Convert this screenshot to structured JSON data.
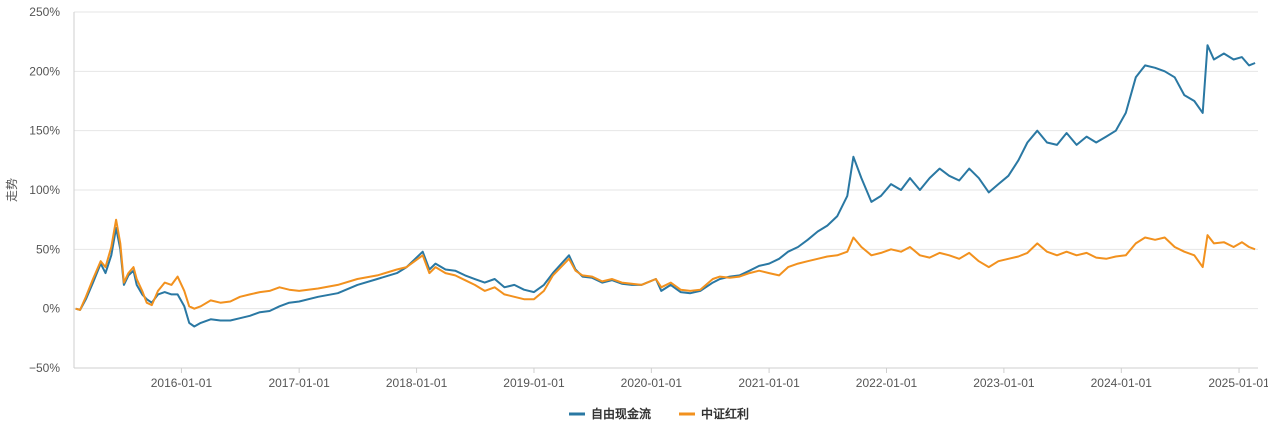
{
  "chart_data": {
    "type": "line",
    "ylabel": "走势",
    "xlabel": "",
    "ylim": [
      -50,
      250
    ],
    "y_ticks": [
      -50,
      0,
      50,
      100,
      150,
      200,
      250
    ],
    "y_tick_labels": [
      "−50%",
      "0%",
      "50%",
      "100%",
      "150%",
      "200%",
      "250%"
    ],
    "x_range": [
      "2015-02-01",
      "2025-03-01"
    ],
    "x_ticks": [
      "2016-01-01",
      "2017-01-01",
      "2018-01-01",
      "2019-01-01",
      "2020-01-01",
      "2021-01-01",
      "2022-01-01",
      "2023-01-01",
      "2024-01-01",
      "2025-01-01"
    ],
    "grid": "horizontal",
    "legend_position": "bottom-center",
    "series": [
      {
        "name": "自由现金流",
        "color": "#2a78a3",
        "points": [
          [
            "2015-02-06",
            0
          ],
          [
            "2015-02-20",
            -1
          ],
          [
            "2015-03-10",
            8
          ],
          [
            "2015-04-01",
            22
          ],
          [
            "2015-04-25",
            38
          ],
          [
            "2015-05-10",
            30
          ],
          [
            "2015-05-28",
            45
          ],
          [
            "2015-06-12",
            68
          ],
          [
            "2015-06-25",
            50
          ],
          [
            "2015-07-06",
            20
          ],
          [
            "2015-07-20",
            28
          ],
          [
            "2015-08-05",
            32
          ],
          [
            "2015-08-15",
            20
          ],
          [
            "2015-09-01",
            12
          ],
          [
            "2015-09-15",
            8
          ],
          [
            "2015-10-01",
            5
          ],
          [
            "2015-10-20",
            12
          ],
          [
            "2015-11-10",
            14
          ],
          [
            "2015-12-01",
            12
          ],
          [
            "2015-12-20",
            12
          ],
          [
            "2016-01-10",
            2
          ],
          [
            "2016-01-25",
            -12
          ],
          [
            "2016-02-10",
            -15
          ],
          [
            "2016-03-01",
            -12
          ],
          [
            "2016-04-01",
            -9
          ],
          [
            "2016-05-01",
            -10
          ],
          [
            "2016-06-01",
            -10
          ],
          [
            "2016-07-01",
            -8
          ],
          [
            "2016-08-01",
            -6
          ],
          [
            "2016-09-01",
            -3
          ],
          [
            "2016-10-01",
            -2
          ],
          [
            "2016-11-01",
            2
          ],
          [
            "2016-12-01",
            5
          ],
          [
            "2017-01-01",
            6
          ],
          [
            "2017-03-01",
            10
          ],
          [
            "2017-05-01",
            13
          ],
          [
            "2017-07-01",
            20
          ],
          [
            "2017-09-01",
            25
          ],
          [
            "2017-11-01",
            30
          ],
          [
            "2017-12-01",
            35
          ],
          [
            "2018-01-20",
            48
          ],
          [
            "2018-02-10",
            33
          ],
          [
            "2018-03-01",
            38
          ],
          [
            "2018-04-01",
            33
          ],
          [
            "2018-05-01",
            32
          ],
          [
            "2018-06-01",
            28
          ],
          [
            "2018-07-01",
            25
          ],
          [
            "2018-08-01",
            22
          ],
          [
            "2018-09-01",
            25
          ],
          [
            "2018-10-01",
            18
          ],
          [
            "2018-11-01",
            20
          ],
          [
            "2018-12-01",
            16
          ],
          [
            "2019-01-01",
            14
          ],
          [
            "2019-02-01",
            20
          ],
          [
            "2019-03-01",
            30
          ],
          [
            "2019-04-20",
            45
          ],
          [
            "2019-05-10",
            33
          ],
          [
            "2019-06-01",
            27
          ],
          [
            "2019-07-01",
            26
          ],
          [
            "2019-08-01",
            22
          ],
          [
            "2019-09-01",
            24
          ],
          [
            "2019-10-01",
            21
          ],
          [
            "2019-11-01",
            20
          ],
          [
            "2019-12-01",
            20
          ],
          [
            "2020-01-15",
            25
          ],
          [
            "2020-02-01",
            15
          ],
          [
            "2020-03-01",
            20
          ],
          [
            "2020-04-01",
            14
          ],
          [
            "2020-05-01",
            13
          ],
          [
            "2020-06-01",
            15
          ],
          [
            "2020-07-10",
            22
          ],
          [
            "2020-08-01",
            25
          ],
          [
            "2020-09-01",
            27
          ],
          [
            "2020-10-01",
            28
          ],
          [
            "2020-11-01",
            32
          ],
          [
            "2020-12-01",
            36
          ],
          [
            "2021-01-01",
            38
          ],
          [
            "2021-02-01",
            42
          ],
          [
            "2021-03-01",
            48
          ],
          [
            "2021-04-01",
            52
          ],
          [
            "2021-05-01",
            58
          ],
          [
            "2021-06-01",
            65
          ],
          [
            "2021-07-01",
            70
          ],
          [
            "2021-08-01",
            78
          ],
          [
            "2021-09-01",
            95
          ],
          [
            "2021-09-20",
            128
          ],
          [
            "2021-10-15",
            110
          ],
          [
            "2021-11-15",
            90
          ],
          [
            "2021-12-15",
            95
          ],
          [
            "2022-01-15",
            105
          ],
          [
            "2022-02-15",
            100
          ],
          [
            "2022-03-15",
            110
          ],
          [
            "2022-04-15",
            100
          ],
          [
            "2022-05-15",
            110
          ],
          [
            "2022-06-15",
            118
          ],
          [
            "2022-07-15",
            112
          ],
          [
            "2022-08-15",
            108
          ],
          [
            "2022-09-15",
            118
          ],
          [
            "2022-10-15",
            110
          ],
          [
            "2022-11-15",
            98
          ],
          [
            "2022-12-15",
            105
          ],
          [
            "2023-01-15",
            112
          ],
          [
            "2023-02-15",
            125
          ],
          [
            "2023-03-15",
            140
          ],
          [
            "2023-04-15",
            150
          ],
          [
            "2023-05-15",
            140
          ],
          [
            "2023-06-15",
            138
          ],
          [
            "2023-07-15",
            148
          ],
          [
            "2023-08-15",
            138
          ],
          [
            "2023-09-15",
            145
          ],
          [
            "2023-10-15",
            140
          ],
          [
            "2023-11-15",
            145
          ],
          [
            "2023-12-15",
            150
          ],
          [
            "2024-01-15",
            165
          ],
          [
            "2024-02-15",
            195
          ],
          [
            "2024-03-15",
            205
          ],
          [
            "2024-04-15",
            203
          ],
          [
            "2024-05-15",
            200
          ],
          [
            "2024-06-15",
            195
          ],
          [
            "2024-07-15",
            180
          ],
          [
            "2024-08-15",
            175
          ],
          [
            "2024-09-10",
            165
          ],
          [
            "2024-09-25",
            222
          ],
          [
            "2024-10-15",
            210
          ],
          [
            "2024-11-15",
            215
          ],
          [
            "2024-12-15",
            210
          ],
          [
            "2025-01-10",
            212
          ],
          [
            "2025-02-01",
            205
          ],
          [
            "2025-02-20",
            207
          ]
        ]
      },
      {
        "name": "中证红利",
        "color": "#f2911e",
        "points": [
          [
            "2015-02-06",
            0
          ],
          [
            "2015-02-20",
            -1
          ],
          [
            "2015-03-10",
            10
          ],
          [
            "2015-04-01",
            25
          ],
          [
            "2015-04-25",
            40
          ],
          [
            "2015-05-10",
            35
          ],
          [
            "2015-05-28",
            52
          ],
          [
            "2015-06-12",
            75
          ],
          [
            "2015-06-25",
            55
          ],
          [
            "2015-07-06",
            22
          ],
          [
            "2015-07-20",
            30
          ],
          [
            "2015-08-05",
            35
          ],
          [
            "2015-08-15",
            25
          ],
          [
            "2015-09-01",
            15
          ],
          [
            "2015-09-15",
            5
          ],
          [
            "2015-10-01",
            3
          ],
          [
            "2015-10-20",
            15
          ],
          [
            "2015-11-10",
            22
          ],
          [
            "2015-12-01",
            20
          ],
          [
            "2015-12-20",
            27
          ],
          [
            "2016-01-10",
            15
          ],
          [
            "2016-01-25",
            2
          ],
          [
            "2016-02-10",
            0
          ],
          [
            "2016-03-01",
            2
          ],
          [
            "2016-04-01",
            7
          ],
          [
            "2016-05-01",
            5
          ],
          [
            "2016-06-01",
            6
          ],
          [
            "2016-07-01",
            10
          ],
          [
            "2016-08-01",
            12
          ],
          [
            "2016-09-01",
            14
          ],
          [
            "2016-10-01",
            15
          ],
          [
            "2016-11-01",
            18
          ],
          [
            "2016-12-01",
            16
          ],
          [
            "2017-01-01",
            15
          ],
          [
            "2017-03-01",
            17
          ],
          [
            "2017-05-01",
            20
          ],
          [
            "2017-07-01",
            25
          ],
          [
            "2017-09-01",
            28
          ],
          [
            "2017-11-01",
            33
          ],
          [
            "2017-12-01",
            35
          ],
          [
            "2018-01-20",
            45
          ],
          [
            "2018-02-10",
            30
          ],
          [
            "2018-03-01",
            35
          ],
          [
            "2018-04-01",
            30
          ],
          [
            "2018-05-01",
            28
          ],
          [
            "2018-06-01",
            24
          ],
          [
            "2018-07-01",
            20
          ],
          [
            "2018-08-01",
            15
          ],
          [
            "2018-09-01",
            18
          ],
          [
            "2018-10-01",
            12
          ],
          [
            "2018-11-01",
            10
          ],
          [
            "2018-12-01",
            8
          ],
          [
            "2019-01-01",
            8
          ],
          [
            "2019-02-01",
            15
          ],
          [
            "2019-03-01",
            28
          ],
          [
            "2019-04-20",
            42
          ],
          [
            "2019-05-10",
            32
          ],
          [
            "2019-06-01",
            28
          ],
          [
            "2019-07-01",
            27
          ],
          [
            "2019-08-01",
            23
          ],
          [
            "2019-09-01",
            25
          ],
          [
            "2019-10-01",
            22
          ],
          [
            "2019-11-01",
            21
          ],
          [
            "2019-12-01",
            20
          ],
          [
            "2020-01-15",
            25
          ],
          [
            "2020-02-01",
            18
          ],
          [
            "2020-03-01",
            22
          ],
          [
            "2020-04-01",
            16
          ],
          [
            "2020-05-01",
            15
          ],
          [
            "2020-06-01",
            16
          ],
          [
            "2020-07-10",
            25
          ],
          [
            "2020-08-01",
            27
          ],
          [
            "2020-09-01",
            26
          ],
          [
            "2020-10-01",
            27
          ],
          [
            "2020-11-01",
            30
          ],
          [
            "2020-12-01",
            32
          ],
          [
            "2021-01-01",
            30
          ],
          [
            "2021-02-01",
            28
          ],
          [
            "2021-03-01",
            35
          ],
          [
            "2021-04-01",
            38
          ],
          [
            "2021-05-01",
            40
          ],
          [
            "2021-06-01",
            42
          ],
          [
            "2021-07-01",
            44
          ],
          [
            "2021-08-01",
            45
          ],
          [
            "2021-09-01",
            48
          ],
          [
            "2021-09-20",
            60
          ],
          [
            "2021-10-15",
            52
          ],
          [
            "2021-11-15",
            45
          ],
          [
            "2021-12-15",
            47
          ],
          [
            "2022-01-15",
            50
          ],
          [
            "2022-02-15",
            48
          ],
          [
            "2022-03-15",
            52
          ],
          [
            "2022-04-15",
            45
          ],
          [
            "2022-05-15",
            43
          ],
          [
            "2022-06-15",
            47
          ],
          [
            "2022-07-15",
            45
          ],
          [
            "2022-08-15",
            42
          ],
          [
            "2022-09-15",
            47
          ],
          [
            "2022-10-15",
            40
          ],
          [
            "2022-11-15",
            35
          ],
          [
            "2022-12-15",
            40
          ],
          [
            "2023-01-15",
            42
          ],
          [
            "2023-02-15",
            44
          ],
          [
            "2023-03-15",
            47
          ],
          [
            "2023-04-15",
            55
          ],
          [
            "2023-05-15",
            48
          ],
          [
            "2023-06-15",
            45
          ],
          [
            "2023-07-15",
            48
          ],
          [
            "2023-08-15",
            45
          ],
          [
            "2023-09-15",
            47
          ],
          [
            "2023-10-15",
            43
          ],
          [
            "2023-11-15",
            42
          ],
          [
            "2023-12-15",
            44
          ],
          [
            "2024-01-15",
            45
          ],
          [
            "2024-02-15",
            55
          ],
          [
            "2024-03-15",
            60
          ],
          [
            "2024-04-15",
            58
          ],
          [
            "2024-05-15",
            60
          ],
          [
            "2024-06-15",
            52
          ],
          [
            "2024-07-15",
            48
          ],
          [
            "2024-08-15",
            45
          ],
          [
            "2024-09-10",
            35
          ],
          [
            "2024-09-25",
            62
          ],
          [
            "2024-10-15",
            55
          ],
          [
            "2024-11-15",
            56
          ],
          [
            "2024-12-15",
            52
          ],
          [
            "2025-01-10",
            56
          ],
          [
            "2025-02-01",
            52
          ],
          [
            "2025-02-20",
            50
          ]
        ]
      }
    ]
  }
}
